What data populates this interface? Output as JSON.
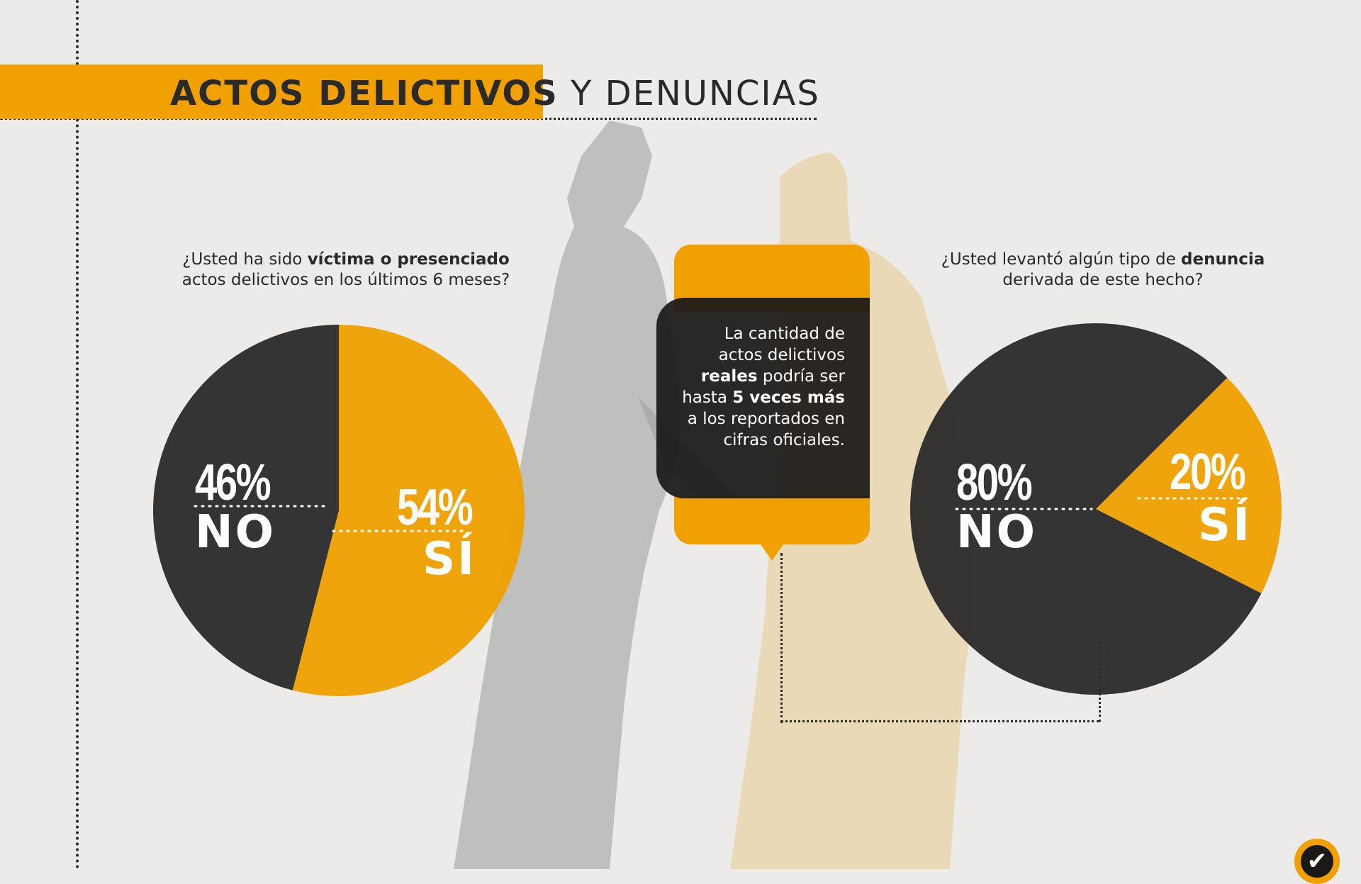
{
  "title": {
    "bold": "ACTOS DELICTIVOS",
    "regular": "Y DENUNCIAS"
  },
  "colors": {
    "accent": "#f0a000",
    "dark": "#2b2a2a",
    "background": "#ecebe9"
  },
  "question_left": {
    "part1": "¿Usted ha sido ",
    "bold": "víctima o presenciado",
    "part2": "actos delictivos en los últimos 6 meses?"
  },
  "question_right": {
    "part1": "¿Usted levantó algún tipo de ",
    "bold": "denuncia",
    "part2": "derivada de este hecho?"
  },
  "callout": {
    "t1": "La cantidad de actos delictivos ",
    "b1": "reales",
    "t2": " podría ser hasta ",
    "b2": "5 veces más",
    "t3": " a los reportados en cifras oficiales."
  },
  "logo": {
    "icon": "checkmark-icon",
    "glyph": "✔"
  },
  "chart_data": [
    {
      "type": "pie",
      "title": "¿Usted ha sido víctima o presenciado actos delictivos en los últimos 6 meses?",
      "slices": [
        {
          "label": "SÍ",
          "value": 54,
          "display": "54%",
          "color": "#f0a000"
        },
        {
          "label": "NO",
          "value": 46,
          "display": "46%",
          "color": "#2b2a2a"
        }
      ]
    },
    {
      "type": "pie",
      "title": "¿Usted levantó algún tipo de denuncia derivada de este hecho?",
      "slices": [
        {
          "label": "SÍ",
          "value": 20,
          "display": "20%",
          "color": "#f0a000"
        },
        {
          "label": "NO",
          "value": 80,
          "display": "80%",
          "color": "#2b2a2a"
        }
      ]
    }
  ]
}
